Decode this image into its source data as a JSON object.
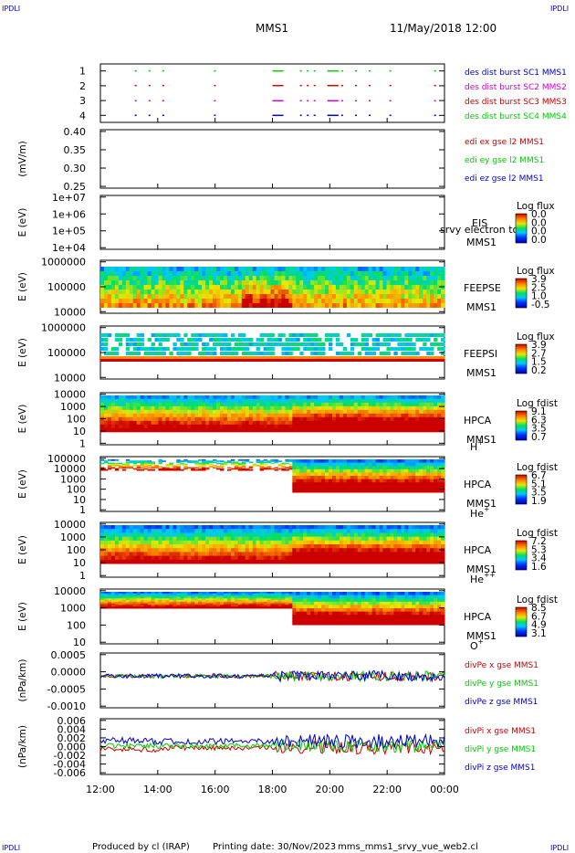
{
  "header": {
    "title": "MMS1",
    "date": "11/May/2018 12:00",
    "corner_labels": [
      "IPDLI",
      "IPDLI",
      "IPDLI",
      "IPDLI"
    ]
  },
  "footer": {
    "produced_by": "Produced by cl (IRAP)",
    "printing_date": "Printing date: 30/Nov/2023",
    "filename": "mms_mms1_srvy_vue_web2.cl"
  },
  "colors": {
    "blue": "#0000cc",
    "magenta": "#cc00cc",
    "red": "#cc0000",
    "green": "#00cc00"
  },
  "chart_data": [
    {
      "id": "burst",
      "type": "scatter",
      "ylabel": "",
      "yticks": [
        "1",
        "2",
        "3",
        "4"
      ],
      "legend": [
        {
          "label": "des dist burst SC1 MMS1",
          "color": "#0000cc"
        },
        {
          "label": "des dist burst SC2 MMS2",
          "color": "#cc00cc"
        },
        {
          "label": "des dist burst SC3 MMS3",
          "color": "#cc0000"
        },
        {
          "label": "des dist burst SC4 MMS4",
          "color": "#00cc00"
        }
      ]
    },
    {
      "id": "edi",
      "type": "line",
      "ylabel": "(mV/m)",
      "yticks": [
        "0.40",
        "0.35",
        "0.30",
        "0.25"
      ],
      "ylim": [
        0.25,
        0.42
      ],
      "legend": [
        {
          "label": "edi ex gse l2 MMS1",
          "color": "#cc0000"
        },
        {
          "label": "edi ey gse l2 MMS1",
          "color": "#00cc00"
        },
        {
          "label": "edi ez gse l2 MMS1",
          "color": "#0000cc"
        }
      ]
    },
    {
      "id": "eis",
      "type": "heatmap",
      "ylabel": "E (eV)",
      "yticks": [
        "1e+07",
        "1e+06",
        "1e+05",
        "1e+04"
      ],
      "side_labels": [
        "EIS",
        "MMS1"
      ],
      "overlay_text": "srvy electron to",
      "colorbar": {
        "title": "Log flux",
        "ticks": [
          "0.0",
          "0.0",
          "0.0",
          "0.0"
        ]
      }
    },
    {
      "id": "feepse",
      "type": "heatmap",
      "ylabel": "E (eV)",
      "yticks": [
        "1000000",
        "100000",
        "10000"
      ],
      "side_labels": [
        "FEEPSE",
        "MMS1"
      ],
      "colorbar": {
        "title": "Log flux",
        "ticks": [
          "3.9",
          "2.5",
          "1.0",
          "-0.5"
        ]
      }
    },
    {
      "id": "feepsi",
      "type": "heatmap",
      "ylabel": "E (eV)",
      "yticks": [
        "1000000",
        "100000",
        "10000"
      ],
      "side_labels": [
        "FEEPSI",
        "MMS1"
      ],
      "colorbar": {
        "title": "Log flux",
        "ticks": [
          "3.9",
          "2.7",
          "1.5",
          "0.2"
        ]
      }
    },
    {
      "id": "hpca_h",
      "type": "heatmap",
      "ylabel": "E (eV)",
      "yticks": [
        "10000",
        "1000",
        "100",
        "10",
        "1"
      ],
      "side_labels": [
        "HPCA",
        "MMS1"
      ],
      "species": "H",
      "species_charge": "+",
      "colorbar": {
        "title": "Log fdist",
        "ticks": [
          "9.1",
          "6.3",
          "3.5",
          "0.7"
        ]
      }
    },
    {
      "id": "hpca_he",
      "type": "heatmap",
      "ylabel": "E (eV)",
      "yticks": [
        "100000",
        "10000",
        "1000",
        "100",
        "10",
        "1"
      ],
      "side_labels": [
        "HPCA",
        "MMS1"
      ],
      "species": "He",
      "species_charge": "+",
      "colorbar": {
        "title": "Log fdist",
        "ticks": [
          "6.7",
          "5.1",
          "3.5",
          "1.9"
        ]
      }
    },
    {
      "id": "hpca_hepp",
      "type": "heatmap",
      "ylabel": "E (eV)",
      "yticks": [
        "10000",
        "1000",
        "100",
        "10",
        "1"
      ],
      "side_labels": [
        "HPCA",
        "MMS1"
      ],
      "species": "He",
      "species_charge": "++",
      "colorbar": {
        "title": "Log fdist",
        "ticks": [
          "7.2",
          "5.3",
          "3.4",
          "1.6"
        ]
      }
    },
    {
      "id": "hpca_o",
      "type": "heatmap",
      "ylabel": "E (eV)",
      "yticks": [
        "10000",
        "1000",
        "100",
        "10"
      ],
      "side_labels": [
        "HPCA",
        "MMS1"
      ],
      "species": "O",
      "species_charge": "+",
      "colorbar": {
        "title": "Log fdist",
        "ticks": [
          "8.5",
          "6.7",
          "4.9",
          "3.1"
        ]
      }
    },
    {
      "id": "divpe",
      "type": "line",
      "ylabel": "(nPa/km)",
      "yticks": [
        "0.0005",
        "0.0000",
        "-0.0005",
        "-0.0010"
      ],
      "ylim": [
        -0.0011,
        0.0008
      ],
      "legend": [
        {
          "label": "divPe x gse MMS1",
          "color": "#cc0000"
        },
        {
          "label": "divPe y gse MMS1",
          "color": "#00cc00"
        },
        {
          "label": "divPe z gse MMS1",
          "color": "#0000cc"
        }
      ]
    },
    {
      "id": "divpi",
      "type": "line",
      "ylabel": "(nPa/km)",
      "yticks": [
        "0.006",
        "0.004",
        "0.002",
        "0.000",
        "-0.002",
        "-0.004",
        "-0.006"
      ],
      "ylim": [
        -0.0068,
        0.0065
      ],
      "legend": [
        {
          "label": "divPi x gse MMS1",
          "color": "#cc0000"
        },
        {
          "label": "divPi y gse MMS1",
          "color": "#00cc00"
        },
        {
          "label": "divPi z gse MMS1",
          "color": "#0000cc"
        }
      ]
    }
  ],
  "x_axis": {
    "ticks": [
      "12:00",
      "14:00",
      "16:00",
      "18:00",
      "20:00",
      "22:00",
      "00:00"
    ],
    "xlim_hours": [
      12,
      24
    ]
  }
}
